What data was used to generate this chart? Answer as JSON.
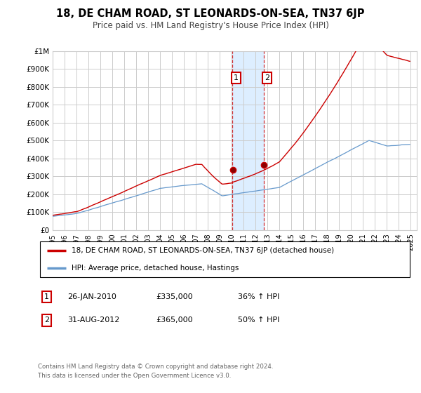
{
  "title": "18, DE CHAM ROAD, ST LEONARDS-ON-SEA, TN37 6JP",
  "subtitle": "Price paid vs. HM Land Registry's House Price Index (HPI)",
  "ylim": [
    0,
    1000000
  ],
  "yticks": [
    0,
    100000,
    200000,
    300000,
    400000,
    500000,
    600000,
    700000,
    800000,
    900000,
    1000000
  ],
  "ytick_labels": [
    "£0",
    "£100K",
    "£200K",
    "£300K",
    "£400K",
    "£500K",
    "£600K",
    "£700K",
    "£800K",
    "£900K",
    "£1M"
  ],
  "xlim_start": 1995.0,
  "xlim_end": 2025.5,
  "transaction1_x": 2010.07,
  "transaction2_x": 2012.67,
  "transaction1_y": 335000,
  "transaction2_y": 365000,
  "transaction1_date": "26-JAN-2010",
  "transaction1_price": "£335,000",
  "transaction1_hpi": "36% ↑ HPI",
  "transaction2_date": "31-AUG-2012",
  "transaction2_price": "£365,000",
  "transaction2_hpi": "50% ↑ HPI",
  "legend_line1": "18, DE CHAM ROAD, ST LEONARDS-ON-SEA, TN37 6JP (detached house)",
  "legend_line2": "HPI: Average price, detached house, Hastings",
  "footer": "Contains HM Land Registry data © Crown copyright and database right 2024.\nThis data is licensed under the Open Government Licence v3.0.",
  "red_color": "#cc0000",
  "blue_color": "#6699cc",
  "shade_color": "#ddeeff",
  "grid_color": "#cccccc",
  "background_color": "#ffffff"
}
